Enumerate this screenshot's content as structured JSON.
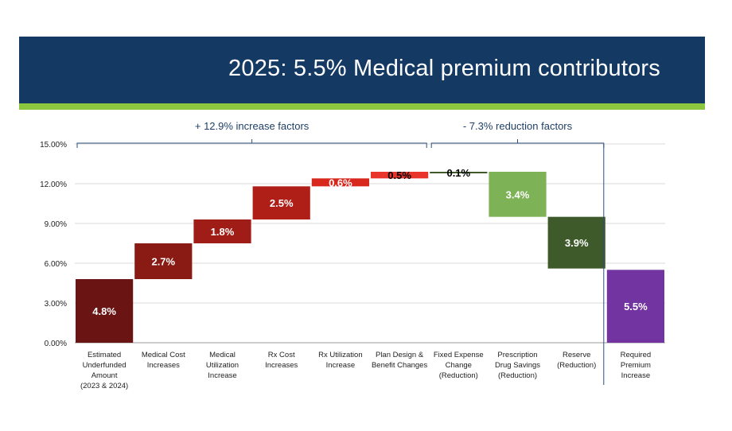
{
  "slide": {
    "title": "2025:  5.5% Medical premium contributors",
    "colors": {
      "title_bg": "#143a64",
      "accent": "#8cc63f",
      "title_text": "#ffffff"
    }
  },
  "chart_data": {
    "type": "bar",
    "subtype": "waterfall",
    "ylim": [
      0,
      15
    ],
    "yticks": [
      "0.00%",
      "3.00%",
      "6.00%",
      "9.00%",
      "12.00%",
      "15.00%"
    ],
    "grid": true,
    "groups": [
      {
        "label": "+ 12.9% increase factors",
        "from": 0,
        "to": 5
      },
      {
        "label": "- 7.3% reduction factors",
        "from": 6,
        "to": 8
      }
    ],
    "bars": [
      {
        "category": [
          "Estimated",
          "Underfunded",
          "Amount",
          "(2023 & 2024)"
        ],
        "start": 0.0,
        "end": 4.8,
        "label": "4.8%",
        "color": "#6b1414",
        "label_color": "#ffffff"
      },
      {
        "category": [
          "Medical Cost",
          "Increases"
        ],
        "start": 4.8,
        "end": 7.5,
        "label": "2.7%",
        "color": "#8a1a14",
        "label_color": "#ffffff"
      },
      {
        "category": [
          "Medical",
          "Utilization",
          "Increase"
        ],
        "start": 7.5,
        "end": 9.3,
        "label": "1.8%",
        "color": "#a01c16",
        "label_color": "#ffffff"
      },
      {
        "category": [
          "Rx Cost",
          "Increases"
        ],
        "start": 9.3,
        "end": 11.8,
        "label": "2.5%",
        "color": "#b01e18",
        "label_color": "#ffffff"
      },
      {
        "category": [
          "Rx Utilization",
          "Increase"
        ],
        "start": 11.8,
        "end": 12.4,
        "label": "0.6%",
        "color": "#d8271d",
        "label_color": "#ffffff"
      },
      {
        "category": [
          "Plan Design &",
          "Benefit Changes"
        ],
        "start": 12.4,
        "end": 12.9,
        "label": "0.5%",
        "color": "#e8342a",
        "label_color": "#000000"
      },
      {
        "category": [
          "Fixed Expense",
          "Change",
          "(Reduction)"
        ],
        "start": 12.8,
        "end": 12.9,
        "label": "0.1%",
        "color": "#3f5a28",
        "label_color": "#000000"
      },
      {
        "category": [
          "Prescription",
          "Drug Savings",
          "(Reduction)"
        ],
        "start": 9.5,
        "end": 12.9,
        "label": "3.4%",
        "color": "#7db356",
        "label_color": "#ffffff"
      },
      {
        "category": [
          "Reserve",
          "(Reduction)"
        ],
        "start": 5.6,
        "end": 9.5,
        "label": "3.9%",
        "color": "#3e5a2a",
        "label_color": "#ffffff"
      },
      {
        "category": [
          "Required",
          "Premium",
          "Increase"
        ],
        "start": 0.0,
        "end": 5.5,
        "label": "5.5%",
        "color": "#7234a0",
        "label_color": "#ffffff"
      }
    ]
  }
}
